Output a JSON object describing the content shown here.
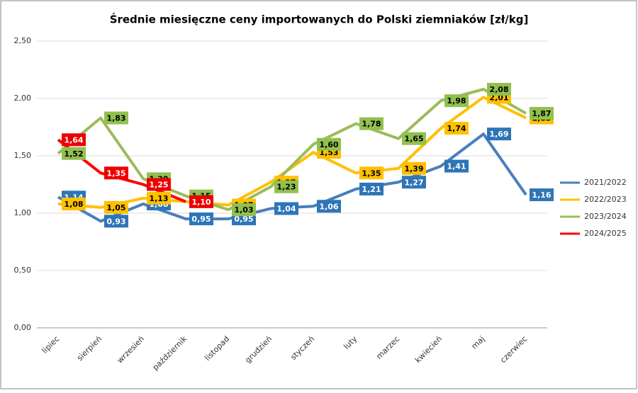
{
  "chart_data": {
    "type": "line",
    "title": "Średnie miesięczne ceny importowanych do Polski ziemniaków  [zł/kg]",
    "categories": [
      "lipiec",
      "sierpień",
      "wrzesień",
      "październik",
      "listopad",
      "grudzień",
      "styczeń",
      "luty",
      "marzec",
      "kwiecień",
      "maj",
      "czerwiec"
    ],
    "series": [
      {
        "name": "2021/2022",
        "color": "#4a7ebb",
        "label_color": "#2e75b6",
        "values": [
          1.14,
          0.93,
          1.08,
          0.95,
          0.95,
          1.04,
          1.06,
          1.21,
          1.27,
          1.41,
          1.69,
          1.16
        ],
        "value_labels": [
          "1,14",
          "0,93",
          "1,08",
          "0,95",
          "0,95",
          "1,04",
          "1,06",
          "1,21",
          "1,27",
          "1,41",
          "1,69",
          "1,16"
        ]
      },
      {
        "name": "2022/2023",
        "color": "#ffc000",
        "label_color": "#ffc000",
        "values": [
          1.08,
          1.05,
          1.13,
          1.1,
          1.07,
          1.27,
          1.53,
          1.35,
          1.39,
          1.74,
          2.01,
          1.83
        ],
        "value_labels": [
          "1,08",
          "1,05",
          "1,13",
          "1,10",
          "1,07",
          "1,27",
          "1,53",
          "1,35",
          "1,39",
          "1,74",
          "2,01",
          "1,83"
        ]
      },
      {
        "name": "2023/2024",
        "color": "#9bbb59",
        "label_color": "#92c050",
        "values": [
          1.52,
          1.83,
          1.3,
          1.15,
          1.03,
          1.23,
          1.6,
          1.78,
          1.65,
          1.98,
          2.08,
          1.87
        ],
        "value_labels": [
          "1,52",
          "1,83",
          "1,30",
          "1,15",
          "1,03",
          "1,23",
          "1,60",
          "1,78",
          "1,65",
          "1,98",
          "2,08",
          "1,87"
        ]
      },
      {
        "name": "2024/2025",
        "color": "#ff0000",
        "label_color": "#ee0000",
        "values": [
          1.64,
          1.35,
          1.25,
          1.1,
          null,
          null,
          null,
          null,
          null,
          null,
          null,
          null
        ],
        "value_labels": [
          "1,64",
          "1,35",
          "1,25",
          "1,10",
          null,
          null,
          null,
          null,
          null,
          null,
          null,
          null
        ]
      }
    ],
    "ylim": [
      0,
      2.5
    ],
    "yticks": [
      {
        "value": 0,
        "label": "0,00"
      },
      {
        "value": 0.5,
        "label": "0,50"
      },
      {
        "value": 1,
        "label": "1,00"
      },
      {
        "value": 1.5,
        "label": "1,50"
      },
      {
        "value": 2,
        "label": "2,00"
      },
      {
        "value": 2.5,
        "label": "2,50"
      }
    ],
    "grid": true,
    "legend": "right"
  }
}
